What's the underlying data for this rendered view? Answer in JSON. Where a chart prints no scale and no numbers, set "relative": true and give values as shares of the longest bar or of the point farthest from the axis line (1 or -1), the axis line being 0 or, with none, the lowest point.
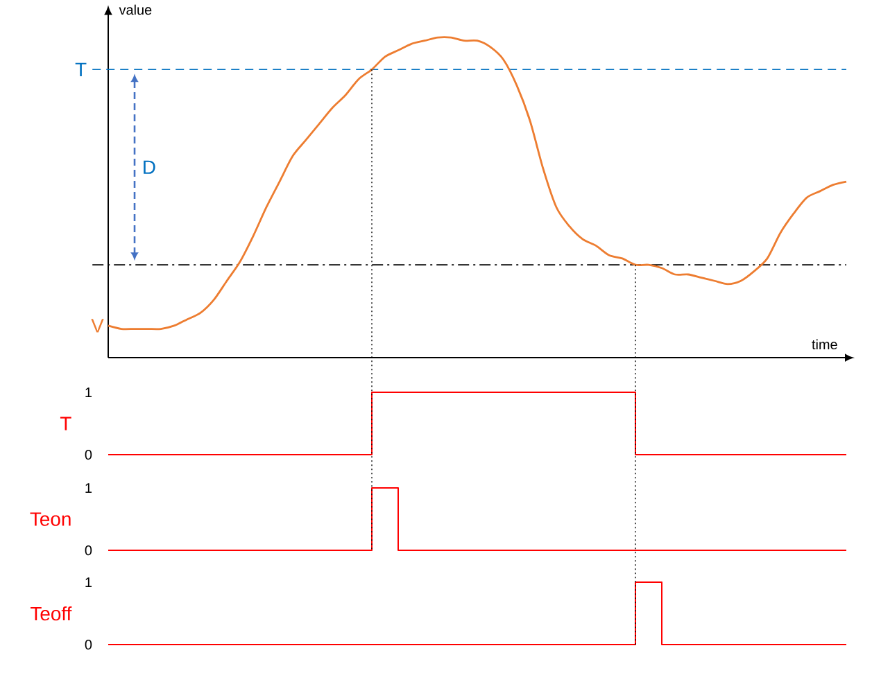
{
  "chart_data": [
    {
      "type": "line",
      "xlabel": "time",
      "ylabel": "value",
      "relative": true,
      "tick_labels": false,
      "categories": [
        null,
        null,
        null,
        null,
        null,
        null,
        null,
        null,
        null,
        null,
        null,
        null,
        null,
        null,
        null,
        null,
        null,
        null,
        null,
        null,
        null,
        null,
        null,
        null,
        null,
        null,
        null,
        null,
        null,
        null,
        null,
        null,
        null,
        null,
        null,
        null,
        null,
        null,
        null,
        null,
        null,
        null,
        null,
        null,
        null,
        null,
        null,
        null,
        null,
        null,
        null,
        null,
        null,
        null,
        null,
        null,
        null
      ],
      "series": [
        {
          "color": "#ed7d31",
          "values": [
            0.1,
            0.09,
            0.09,
            0.09,
            0.09,
            0.1,
            0.12,
            0.14,
            0.18,
            0.24,
            0.3,
            0.38,
            0.47,
            0.55,
            0.63,
            0.68,
            0.73,
            0.78,
            0.82,
            0.87,
            0.9,
            0.94,
            0.96,
            0.98,
            0.99,
            1,
            1,
            0.99,
            0.99,
            0.97,
            0.93,
            0.85,
            0.74,
            0.59,
            0.47,
            0.41,
            0.37,
            0.35,
            0.32,
            0.31,
            0.29,
            0.29,
            0.28,
            0.26,
            0.26,
            0.25,
            0.24,
            0.23,
            0.24,
            0.27,
            0.31,
            0.39,
            0.45,
            0.5,
            0.52,
            0.54,
            0.55
          ]
        }
      ],
      "ref_lines": [
        {
          "axis": "y",
          "value": 0.9,
          "label": "T",
          "color": "#0070c0",
          "line_style": "dashed"
        },
        {
          "axis": "y",
          "value": 0.29,
          "color": "#000000",
          "line_style": "dashdot"
        }
      ],
      "annotations": [
        "D",
        "V"
      ]
    },
    {
      "type": "step",
      "ylabel": "T",
      "tick_labels": "y",
      "ylim": [
        0,
        1
      ],
      "yticks": [
        0,
        1
      ],
      "categories": [
        null,
        null,
        null,
        null,
        null,
        null,
        null,
        null,
        null,
        null,
        null,
        null,
        null,
        null,
        null,
        null,
        null,
        null,
        null,
        null,
        null,
        null,
        null,
        null,
        null,
        null,
        null,
        null,
        null,
        null,
        null,
        null,
        null,
        null,
        null,
        null,
        null,
        null,
        null,
        null,
        null,
        null,
        null,
        null,
        null,
        null,
        null,
        null,
        null,
        null,
        null,
        null,
        null,
        null,
        null,
        null,
        null
      ],
      "series": [
        {
          "color": "#ff0000",
          "values": [
            0,
            0,
            0,
            0,
            0,
            0,
            0,
            0,
            0,
            0,
            0,
            0,
            0,
            0,
            0,
            0,
            0,
            0,
            0,
            0,
            1,
            1,
            1,
            1,
            1,
            1,
            1,
            1,
            1,
            1,
            1,
            1,
            1,
            1,
            1,
            1,
            1,
            1,
            1,
            1,
            0,
            0,
            0,
            0,
            0,
            0,
            0,
            0,
            0,
            0,
            0,
            0,
            0,
            0,
            0,
            0,
            0
          ]
        }
      ]
    },
    {
      "type": "step",
      "ylabel": "Teon",
      "tick_labels": "y",
      "ylim": [
        0,
        1
      ],
      "yticks": [
        0,
        1
      ],
      "categories": [
        null,
        null,
        null,
        null,
        null,
        null,
        null,
        null,
        null,
        null,
        null,
        null,
        null,
        null,
        null,
        null,
        null,
        null,
        null,
        null,
        null,
        null,
        null,
        null,
        null,
        null,
        null,
        null,
        null,
        null,
        null,
        null,
        null,
        null,
        null,
        null,
        null,
        null,
        null,
        null,
        null,
        null,
        null,
        null,
        null,
        null,
        null,
        null,
        null,
        null,
        null,
        null,
        null,
        null,
        null,
        null,
        null
      ],
      "series": [
        {
          "color": "#ff0000",
          "values": [
            0,
            0,
            0,
            0,
            0,
            0,
            0,
            0,
            0,
            0,
            0,
            0,
            0,
            0,
            0,
            0,
            0,
            0,
            0,
            0,
            1,
            1,
            0,
            0,
            0,
            0,
            0,
            0,
            0,
            0,
            0,
            0,
            0,
            0,
            0,
            0,
            0,
            0,
            0,
            0,
            0,
            0,
            0,
            0,
            0,
            0,
            0,
            0,
            0,
            0,
            0,
            0,
            0,
            0,
            0,
            0,
            0
          ]
        }
      ]
    },
    {
      "type": "step",
      "ylabel": "Teoff",
      "tick_labels": "y",
      "ylim": [
        0,
        1
      ],
      "yticks": [
        0,
        1
      ],
      "categories": [
        null,
        null,
        null,
        null,
        null,
        null,
        null,
        null,
        null,
        null,
        null,
        null,
        null,
        null,
        null,
        null,
        null,
        null,
        null,
        null,
        null,
        null,
        null,
        null,
        null,
        null,
        null,
        null,
        null,
        null,
        null,
        null,
        null,
        null,
        null,
        null,
        null,
        null,
        null,
        null,
        null,
        null,
        null,
        null,
        null,
        null,
        null,
        null,
        null,
        null,
        null,
        null,
        null,
        null,
        null,
        null,
        null
      ],
      "series": [
        {
          "color": "#ff0000",
          "values": [
            0,
            0,
            0,
            0,
            0,
            0,
            0,
            0,
            0,
            0,
            0,
            0,
            0,
            0,
            0,
            0,
            0,
            0,
            0,
            0,
            0,
            0,
            0,
            0,
            0,
            0,
            0,
            0,
            0,
            0,
            0,
            0,
            0,
            0,
            0,
            0,
            0,
            0,
            0,
            0,
            1,
            1,
            0,
            0,
            0,
            0,
            0,
            0,
            0,
            0,
            0,
            0,
            0,
            0,
            0,
            0,
            0
          ]
        }
      ]
    }
  ]
}
